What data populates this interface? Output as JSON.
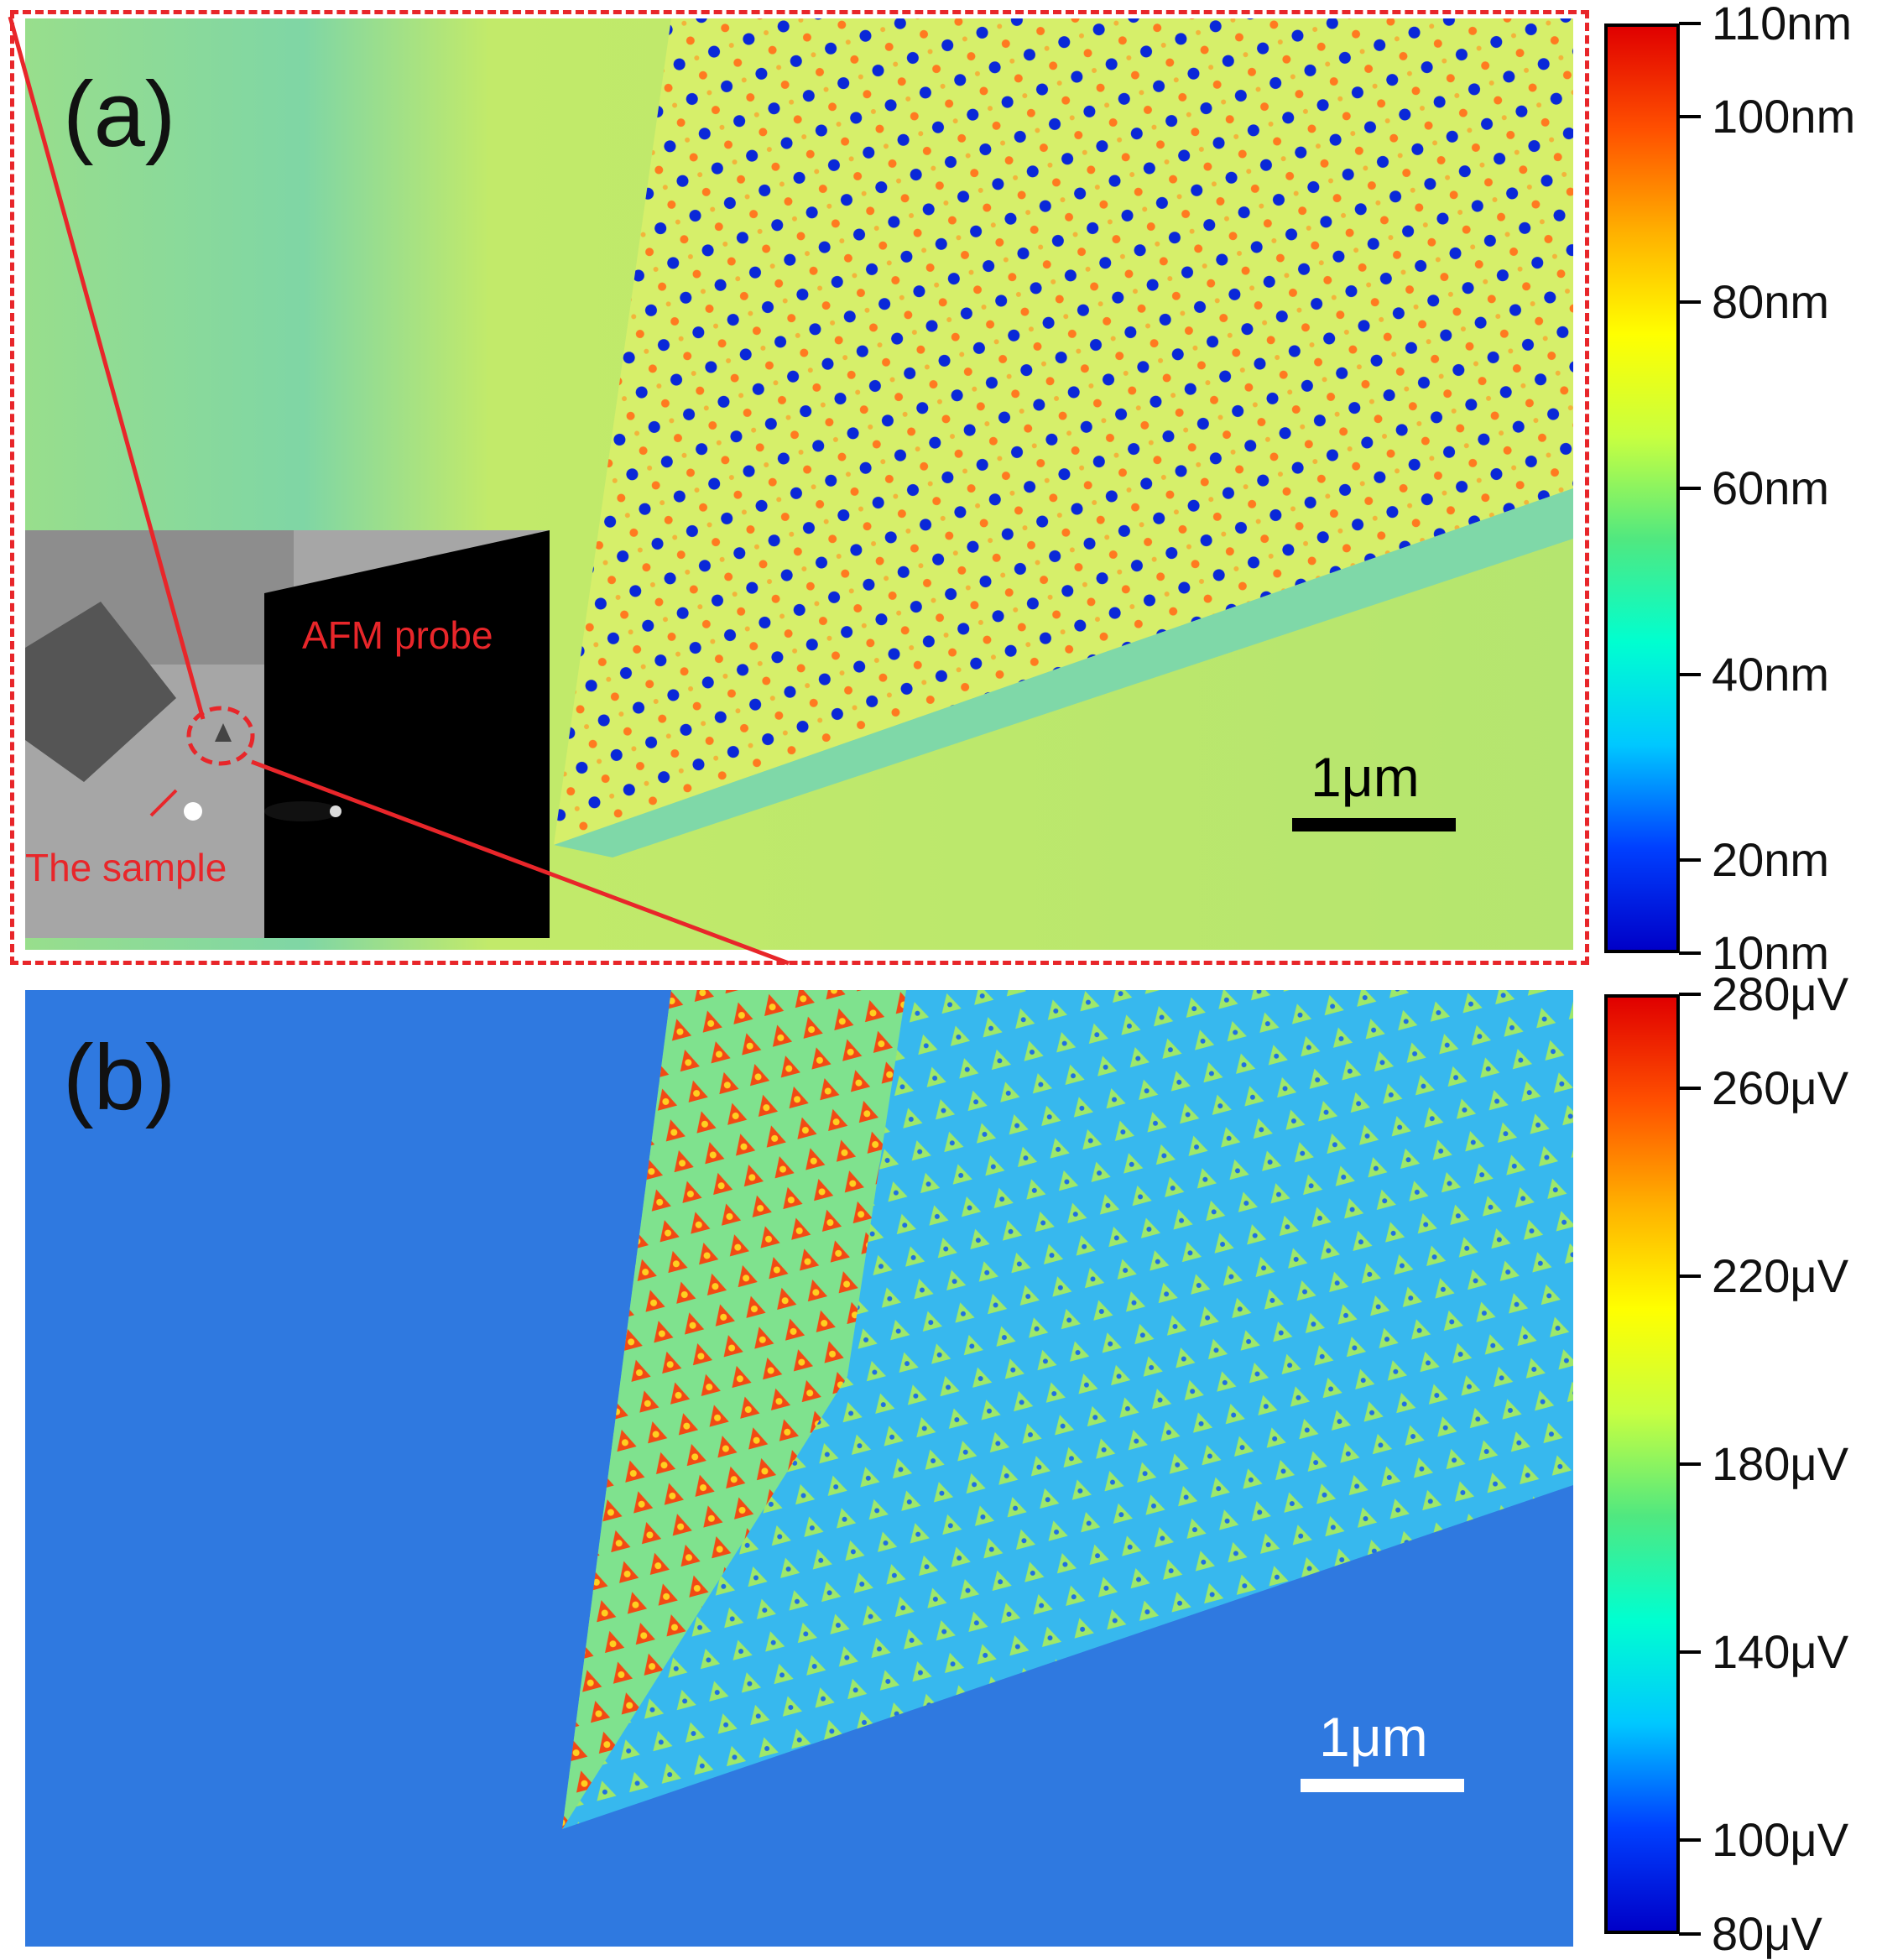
{
  "panel_a": {
    "label": "(a)",
    "scalebar_label": "1μm",
    "colorbar": {
      "colors": [
        "#0000c8",
        "#0040ff",
        "#00c8ff",
        "#00ffd0",
        "#50e880",
        "#c8ff40",
        "#ffff00",
        "#ffb000",
        "#ff5000",
        "#e00000"
      ],
      "ticks": [
        {
          "value": 110,
          "label": "110nm"
        },
        {
          "value": 100,
          "label": "100nm"
        },
        {
          "value": 80,
          "label": "80nm"
        },
        {
          "value": 60,
          "label": "60nm"
        },
        {
          "value": 40,
          "label": "40nm"
        },
        {
          "value": 20,
          "label": "20nm"
        },
        {
          "value": 10,
          "label": "10nm"
        }
      ],
      "range": [
        10,
        110
      ]
    },
    "inset": {
      "probe_label": "AFM probe",
      "sample_label": "The sample"
    }
  },
  "panel_b": {
    "label": "(b)",
    "scalebar_label": "1μm",
    "colorbar": {
      "colors": [
        "#0000c8",
        "#0040ff",
        "#00c8ff",
        "#00ffd0",
        "#50e880",
        "#c8ff40",
        "#ffff00",
        "#ffb000",
        "#ff5000",
        "#e00000"
      ],
      "ticks": [
        {
          "value": 280,
          "label": "280μV"
        },
        {
          "value": 260,
          "label": "260μV"
        },
        {
          "value": 220,
          "label": "220μV"
        },
        {
          "value": 180,
          "label": "180μV"
        },
        {
          "value": 140,
          "label": "140μV"
        },
        {
          "value": 100,
          "label": "100μV"
        },
        {
          "value": 80,
          "label": "80μV"
        }
      ],
      "range": [
        80,
        280
      ]
    }
  },
  "colors": {
    "callout": "#e8262a",
    "background_a": "#a9e07c",
    "background_b": "#2f79e0",
    "moire_high": "#ff6a1a",
    "moire_low": "#1030e0"
  }
}
